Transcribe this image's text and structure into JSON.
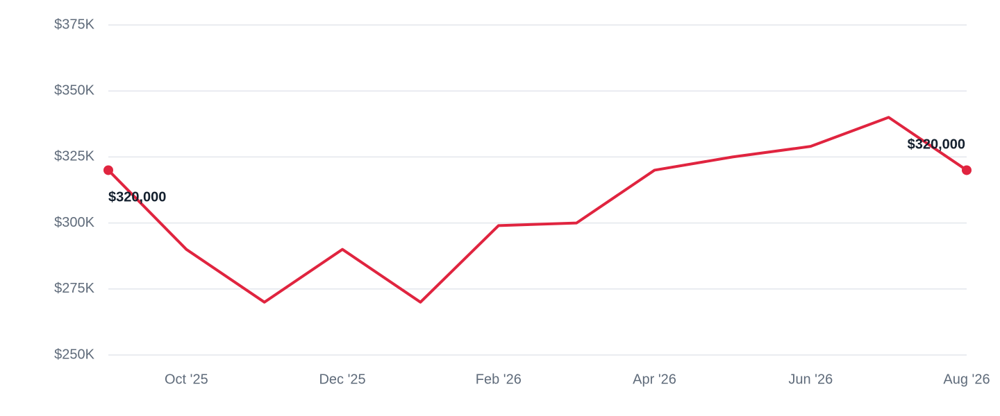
{
  "chart_data": {
    "type": "line",
    "categories": [
      null,
      "Oct '25",
      null,
      "Dec '25",
      null,
      "Feb '26",
      null,
      "Apr '26",
      null,
      "Jun '26",
      null,
      "Aug '26"
    ],
    "series": [
      {
        "color": "#e0243f",
        "values": [
          320000,
          290000,
          270000,
          290000,
          270000,
          299000,
          300000,
          320000,
          325000,
          329000,
          340000,
          320000
        ],
        "value_labels": [
          "$320,000",
          null,
          null,
          null,
          null,
          null,
          null,
          null,
          null,
          null,
          null,
          "$320,000"
        ]
      }
    ],
    "ylim": [
      250000,
      375000
    ],
    "yticks": [
      {
        "value": 250000,
        "label": "$250K"
      },
      {
        "value": 275000,
        "label": "$275K"
      },
      {
        "value": 300000,
        "label": "$300K"
      },
      {
        "value": 325000,
        "label": "$325K"
      },
      {
        "value": 350000,
        "label": "$350K"
      },
      {
        "value": 375000,
        "label": "$375K"
      }
    ],
    "grid": true
  }
}
